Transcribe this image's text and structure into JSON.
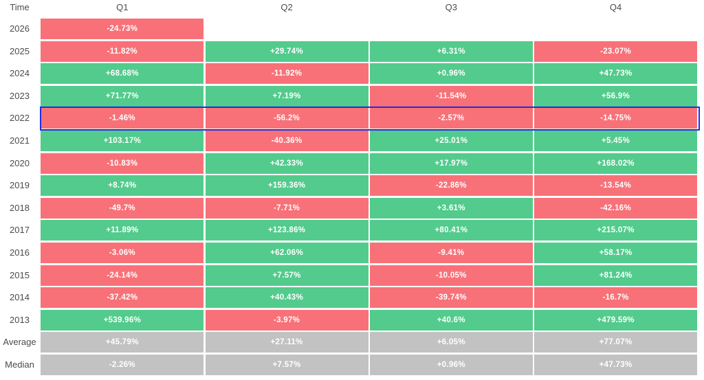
{
  "colors": {
    "positive": "#52CB8C",
    "negative": "#F87178",
    "summary": "#C2C2C2",
    "highlight_border": "#1C2FDE",
    "cell_text": "#FFFFFF",
    "label_text": "#4B4B4F"
  },
  "table": {
    "corner_label": "Time"
  },
  "chart_data": {
    "type": "heatmap",
    "columns": [
      "Q1",
      "Q2",
      "Q3",
      "Q4"
    ],
    "value_unit": "%",
    "legend_position": "none",
    "rows": [
      {
        "label": "2026",
        "kind": "year",
        "highlighted": false,
        "display": [
          "-24.73%",
          null,
          null,
          null
        ],
        "values": [
          -24.73,
          null,
          null,
          null
        ]
      },
      {
        "label": "2025",
        "kind": "year",
        "highlighted": false,
        "display": [
          "-11.82%",
          "+29.74%",
          "+6.31%",
          "-23.07%"
        ],
        "values": [
          -11.82,
          29.74,
          6.31,
          -23.07
        ]
      },
      {
        "label": "2024",
        "kind": "year",
        "highlighted": false,
        "display": [
          "+68.68%",
          "-11.92%",
          "+0.96%",
          "+47.73%"
        ],
        "values": [
          68.68,
          -11.92,
          0.96,
          47.73
        ]
      },
      {
        "label": "2023",
        "kind": "year",
        "highlighted": false,
        "display": [
          "+71.77%",
          "+7.19%",
          "-11.54%",
          "+56.9%"
        ],
        "values": [
          71.77,
          7.19,
          -11.54,
          56.9
        ]
      },
      {
        "label": "2022",
        "kind": "year",
        "highlighted": true,
        "display": [
          "-1.46%",
          "-56.2%",
          "-2.57%",
          "-14.75%"
        ],
        "values": [
          -1.46,
          -56.2,
          -2.57,
          -14.75
        ]
      },
      {
        "label": "2021",
        "kind": "year",
        "highlighted": false,
        "display": [
          "+103.17%",
          "-40.36%",
          "+25.01%",
          "+5.45%"
        ],
        "values": [
          103.17,
          -40.36,
          25.01,
          5.45
        ]
      },
      {
        "label": "2020",
        "kind": "year",
        "highlighted": false,
        "display": [
          "-10.83%",
          "+42.33%",
          "+17.97%",
          "+168.02%"
        ],
        "values": [
          -10.83,
          42.33,
          17.97,
          168.02
        ]
      },
      {
        "label": "2019",
        "kind": "year",
        "highlighted": false,
        "display": [
          "+8.74%",
          "+159.36%",
          "-22.86%",
          "-13.54%"
        ],
        "values": [
          8.74,
          159.36,
          -22.86,
          -13.54
        ]
      },
      {
        "label": "2018",
        "kind": "year",
        "highlighted": false,
        "display": [
          "-49.7%",
          "-7.71%",
          "+3.61%",
          "-42.16%"
        ],
        "values": [
          -49.7,
          -7.71,
          3.61,
          -42.16
        ]
      },
      {
        "label": "2017",
        "kind": "year",
        "highlighted": false,
        "display": [
          "+11.89%",
          "+123.86%",
          "+80.41%",
          "+215.07%"
        ],
        "values": [
          11.89,
          123.86,
          80.41,
          215.07
        ]
      },
      {
        "label": "2016",
        "kind": "year",
        "highlighted": false,
        "display": [
          "-3.06%",
          "+62.06%",
          "-9.41%",
          "+58.17%"
        ],
        "values": [
          -3.06,
          62.06,
          -9.41,
          58.17
        ]
      },
      {
        "label": "2015",
        "kind": "year",
        "highlighted": false,
        "display": [
          "-24.14%",
          "+7.57%",
          "-10.05%",
          "+81.24%"
        ],
        "values": [
          -24.14,
          7.57,
          -10.05,
          81.24
        ]
      },
      {
        "label": "2014",
        "kind": "year",
        "highlighted": false,
        "display": [
          "-37.42%",
          "+40.43%",
          "-39.74%",
          "-16.7%"
        ],
        "values": [
          -37.42,
          40.43,
          -39.74,
          -16.7
        ]
      },
      {
        "label": "2013",
        "kind": "year",
        "highlighted": false,
        "display": [
          "+539.96%",
          "-3.97%",
          "+40.6%",
          "+479.59%"
        ],
        "values": [
          539.96,
          -3.97,
          40.6,
          479.59
        ]
      },
      {
        "label": "Average",
        "kind": "summary",
        "highlighted": false,
        "display": [
          "+45.79%",
          "+27.11%",
          "+6.05%",
          "+77.07%"
        ],
        "values": [
          45.79,
          27.11,
          6.05,
          77.07
        ]
      },
      {
        "label": "Median",
        "kind": "summary",
        "highlighted": false,
        "display": [
          "-2.26%",
          "+7.57%",
          "+0.96%",
          "+47.73%"
        ],
        "values": [
          -2.26,
          7.57,
          0.96,
          47.73
        ]
      }
    ]
  }
}
